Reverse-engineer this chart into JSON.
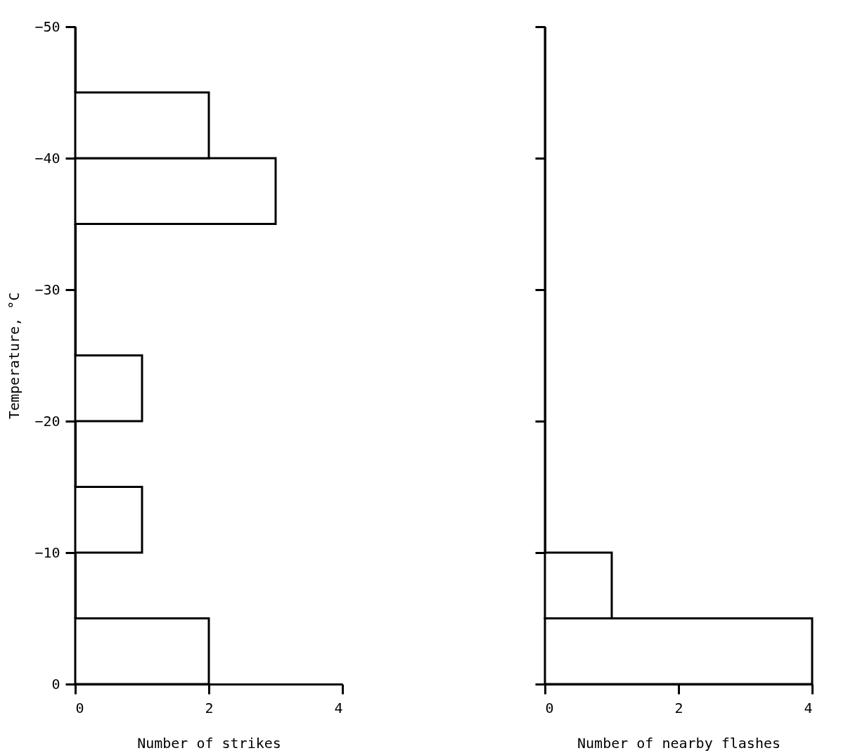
{
  "chart_data": [
    {
      "type": "histogram",
      "orientation": "horizontal",
      "bins": [
        0,
        -5,
        -10,
        -15,
        -20,
        -25,
        -30,
        -35,
        -40,
        -45,
        -50
      ],
      "values": [
        2,
        0,
        1,
        0,
        1,
        0,
        0,
        3,
        2,
        0
      ],
      "xlim": [
        0,
        4
      ],
      "xticks": [
        0,
        2,
        4
      ],
      "ylim": [
        0,
        -50
      ],
      "yticks": [
        0,
        -10,
        -20,
        -30,
        -40,
        -50
      ],
      "xlabel": "Number of strikes",
      "ylabel": "Temperature, °C"
    },
    {
      "type": "histogram",
      "orientation": "horizontal",
      "bins": [
        0,
        -5,
        -10,
        -15,
        -20,
        -25,
        -30,
        -35,
        -40,
        -45,
        -50
      ],
      "values": [
        4,
        1,
        0,
        0,
        0,
        0,
        0,
        0,
        0,
        0
      ],
      "xlim": [
        0,
        4
      ],
      "xticks": [
        0,
        2,
        4
      ],
      "ylim": [
        0,
        -50
      ],
      "yticks": [
        0,
        -10,
        -20,
        -30,
        -40,
        -50
      ],
      "xlabel": "Number of nearby flashes",
      "tick_labels": "x"
    }
  ]
}
